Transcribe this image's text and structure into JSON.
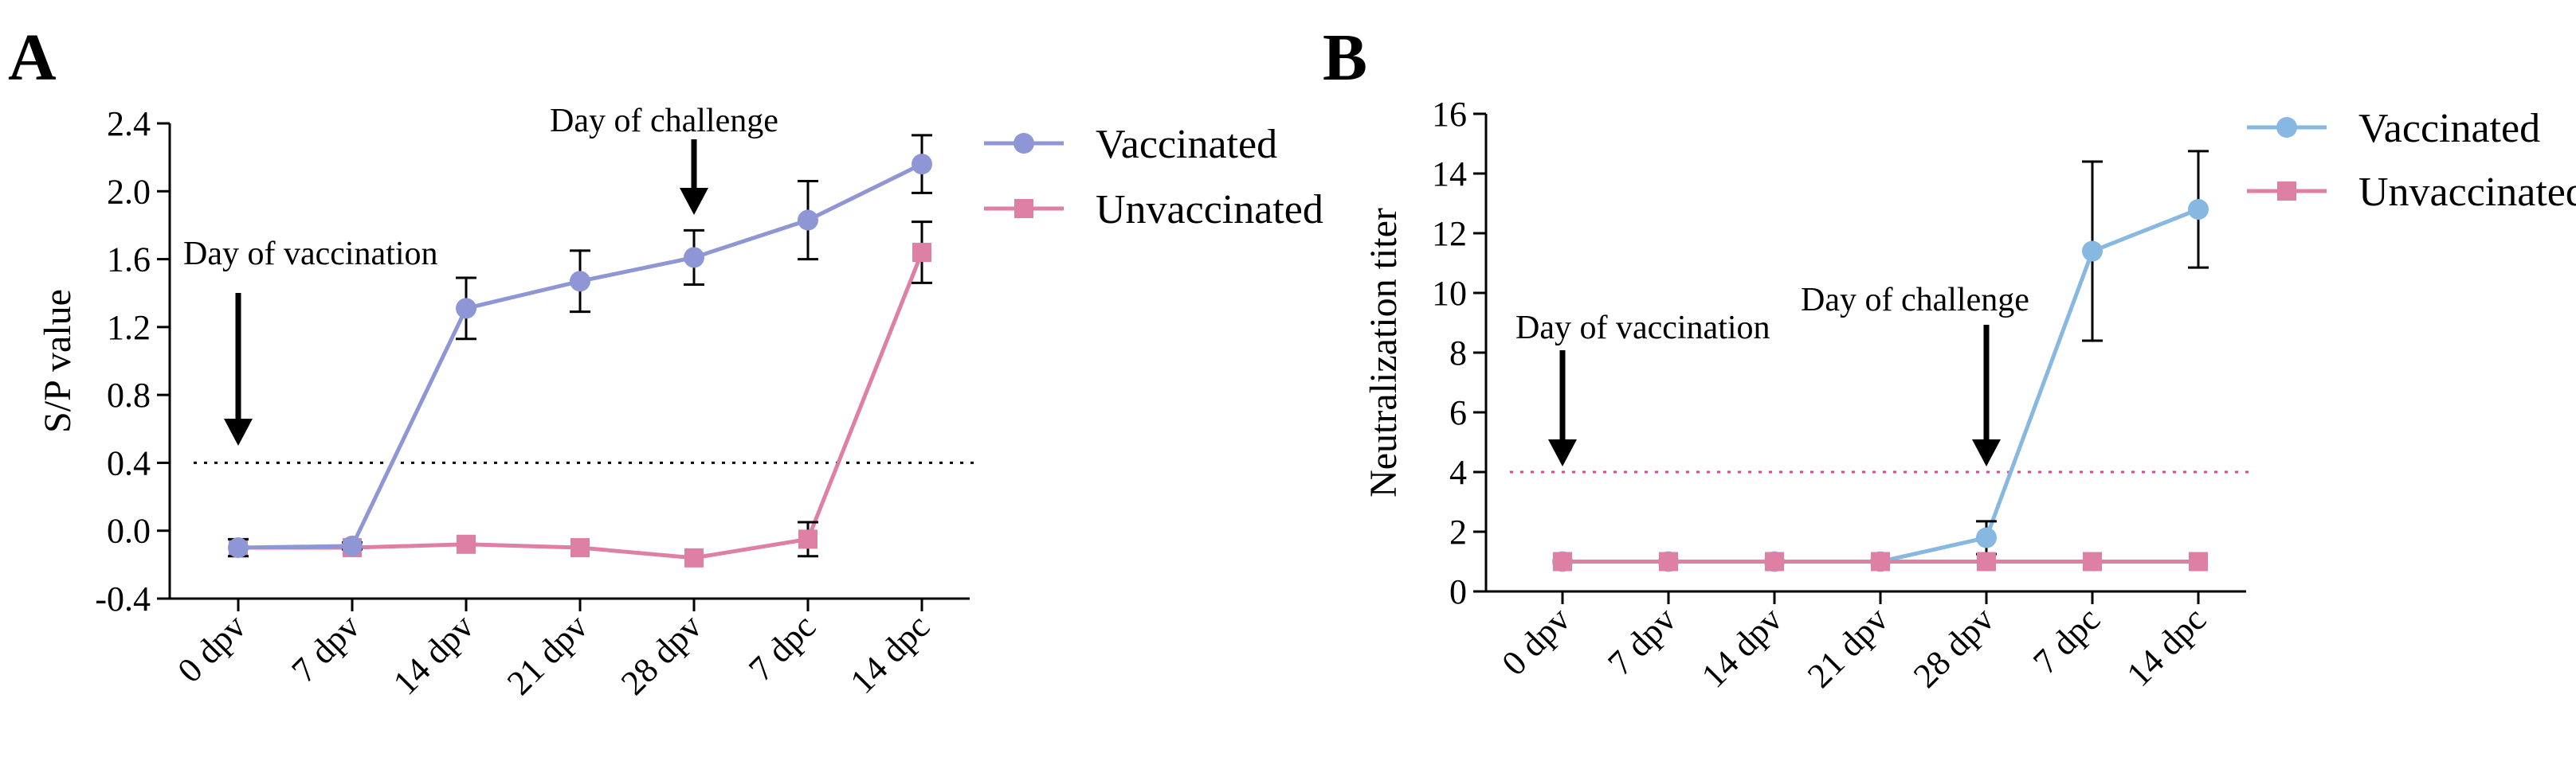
{
  "chart_data": [
    {
      "type": "line",
      "panel_label": "A",
      "title": "",
      "xlabel": "",
      "ylabel": "S/P value",
      "categories": [
        "0 dpv",
        "7 dpv",
        "14 dpv",
        "21 dpv",
        "28 dpv",
        "7 dpc",
        "14 dpc"
      ],
      "ylim": [
        -0.4,
        2.4
      ],
      "yticks": [
        "-0.4",
        "0.0",
        "0.4",
        "0.8",
        "1.2",
        "1.6",
        "2.0",
        "2.4"
      ],
      "threshold": 0.4,
      "legend_position": "top-right",
      "series": [
        {
          "name": "Vaccinated",
          "marker": "circle",
          "color": "#8f96d6",
          "values": [
            -0.1,
            -0.09,
            1.31,
            1.47,
            1.61,
            1.83,
            2.16
          ],
          "errors": [
            0.05,
            0.02,
            0.18,
            0.18,
            0.16,
            0.23,
            0.17
          ]
        },
        {
          "name": "Unvaccinated",
          "marker": "square",
          "color": "#de7fa4",
          "values": [
            -0.1,
            -0.1,
            -0.08,
            -0.1,
            -0.16,
            -0.05,
            1.64
          ],
          "errors": [
            0.0,
            0.0,
            0.0,
            0.0,
            0.0,
            0.1,
            0.18
          ]
        }
      ],
      "annotations": [
        {
          "text": "Day of vaccination",
          "category": "0 dpv"
        },
        {
          "text": "Day of challenge",
          "category": "28 dpv"
        }
      ]
    },
    {
      "type": "line",
      "panel_label": "B",
      "title": "",
      "xlabel": "",
      "ylabel": "Neutralization titer",
      "categories": [
        "0 dpv",
        "7 dpv",
        "14 dpv",
        "21 dpv",
        "28 dpv",
        "7 dpc",
        "14 dpc"
      ],
      "ylim": [
        0,
        16
      ],
      "yticks": [
        "0",
        "2",
        "4",
        "6",
        "8",
        "10",
        "12",
        "14",
        "16"
      ],
      "threshold": 4,
      "legend_position": "top-right",
      "series": [
        {
          "name": "Vaccinated",
          "marker": "circle",
          "color": "#86b8e2",
          "values": [
            1,
            1,
            1,
            1,
            1.8,
            11.4,
            12.8
          ],
          "errors": [
            0,
            0,
            0,
            0,
            0.55,
            3.0,
            1.95
          ]
        },
        {
          "name": "Unvaccinated",
          "marker": "square",
          "color": "#de7fa4",
          "values": [
            1,
            1,
            1,
            1,
            1,
            1,
            1
          ],
          "errors": [
            0,
            0,
            0,
            0,
            0,
            0,
            0
          ]
        }
      ],
      "annotations": [
        {
          "text": "Day of vaccination",
          "category": "0 dpv"
        },
        {
          "text": "Day of challenge",
          "category": "28 dpv"
        }
      ]
    }
  ]
}
